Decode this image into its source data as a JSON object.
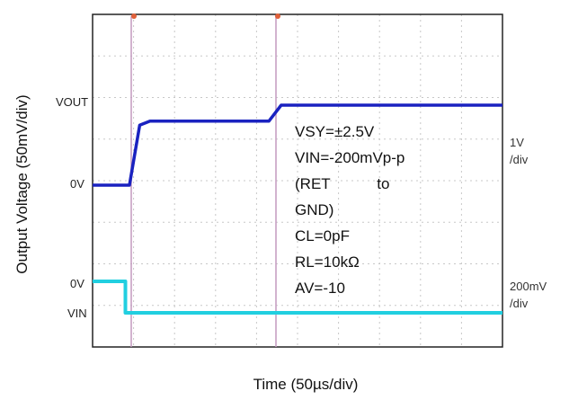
{
  "chart_data": {
    "type": "line",
    "title": "",
    "xlabel": "Time (50µs/div)",
    "ylabel": "Output Voltage (50mV/div)",
    "x_unit_per_div": "50µs",
    "x_divisions": 10,
    "grid": true,
    "grid_style": "dotted",
    "series": [
      {
        "name": "VOUT",
        "color": "#1a22c0",
        "scale_label": "1V /div",
        "level_labels": [
          "VOUT",
          "0V"
        ],
        "points": [
          [
            0,
            0
          ],
          [
            0.9,
            0
          ],
          [
            1.15,
            0.75
          ],
          [
            1.4,
            0.8
          ],
          [
            4.3,
            0.8
          ],
          [
            4.6,
            1.0
          ],
          [
            10,
            1.0
          ]
        ]
      },
      {
        "name": "VIN",
        "color": "#21cfe0",
        "scale_label": "200mV /div",
        "level_labels": [
          "0V",
          "VIN"
        ],
        "points": [
          [
            0,
            0
          ],
          [
            0.8,
            0
          ],
          [
            0.8,
            -1
          ],
          [
            10,
            -1
          ]
        ]
      }
    ],
    "annotation": [
      "VSY=±2.5V",
      "VIN=-200mVp-p",
      "(RET           to",
      "GND)",
      "CL=0pF",
      "RL=10kΩ",
      "AV=-10"
    ]
  },
  "labels": {
    "vout_tag": "VOUT",
    "vout_zero": "0V",
    "vin_zero": "0V",
    "vin_tag": "VIN",
    "vout_scale_1": "1V",
    "vout_scale_2": "/div",
    "vin_scale_1": "200mV",
    "vin_scale_2": "/div"
  }
}
